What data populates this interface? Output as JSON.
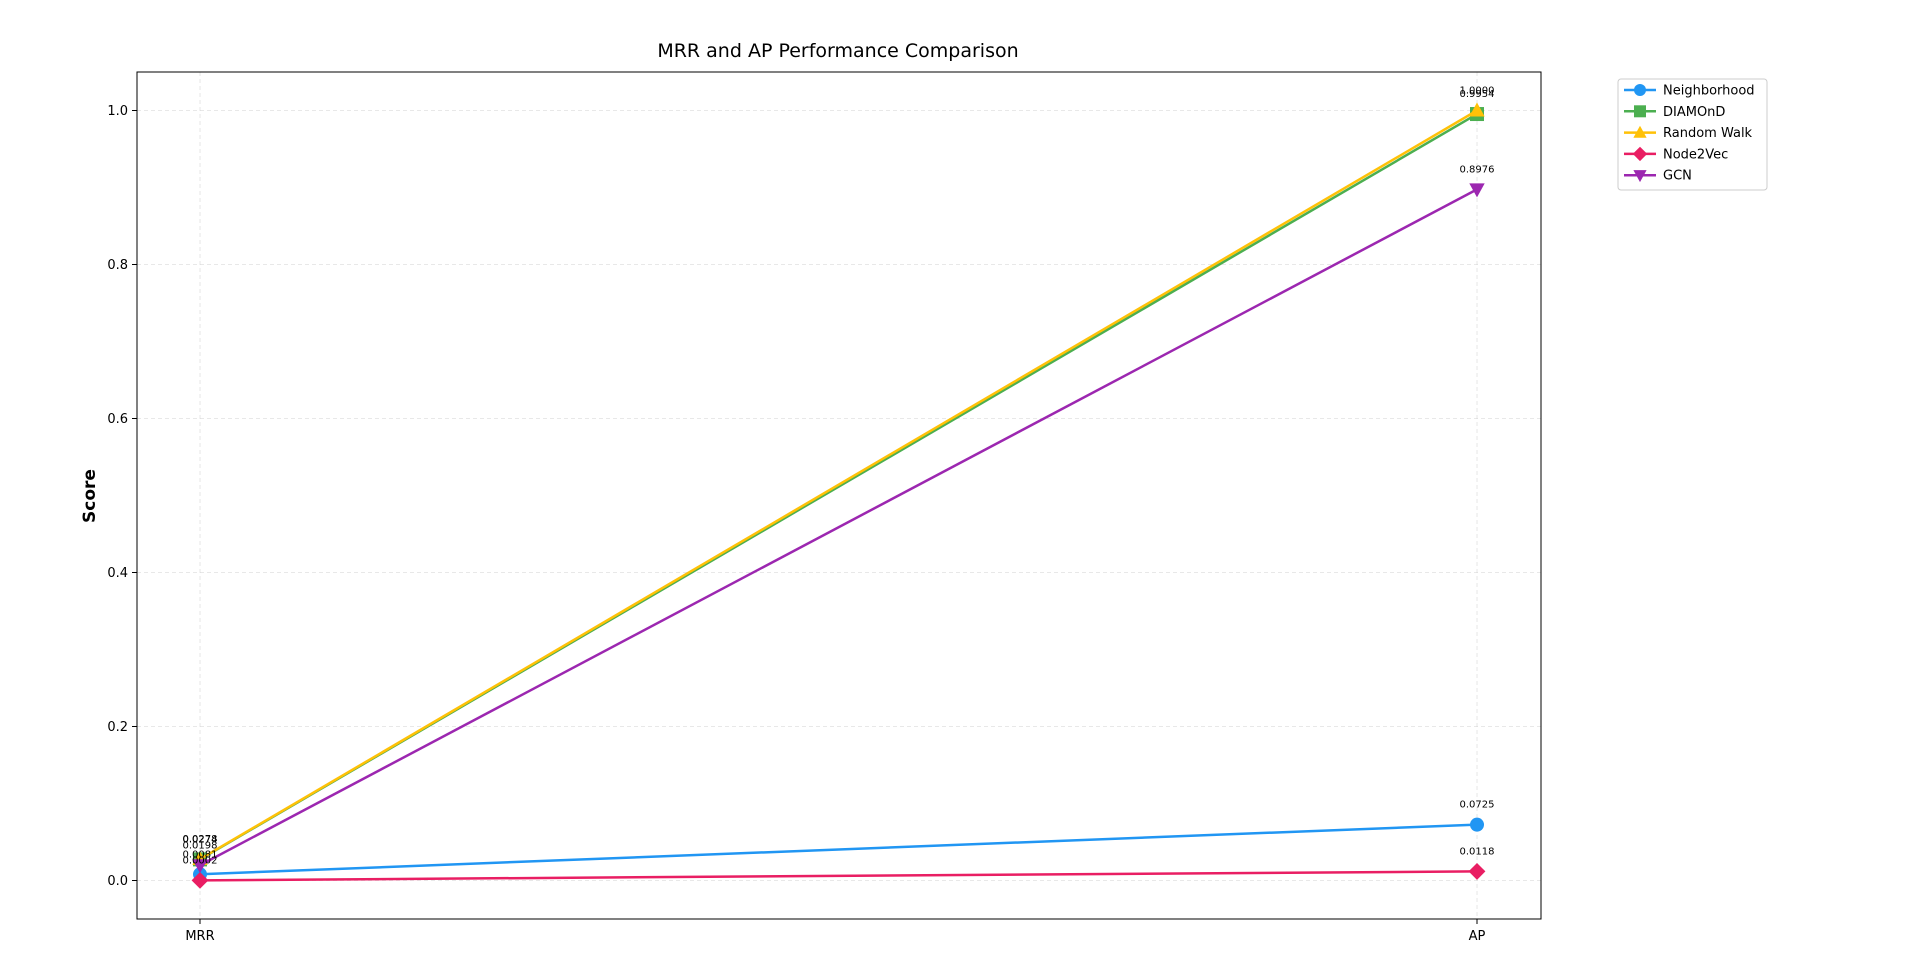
{
  "chart_data": {
    "type": "line",
    "title": "MRR and AP Performance Comparison",
    "xlabel": "",
    "ylabel": "Score",
    "categories": [
      "MRR",
      "AP"
    ],
    "ylim": [
      -0.05,
      1.05
    ],
    "yticks": [
      0.0,
      0.2,
      0.4,
      0.6,
      0.8,
      1.0
    ],
    "ytick_labels": [
      "0.0",
      "0.2",
      "0.4",
      "0.6",
      "0.8",
      "1.0"
    ],
    "grid": true,
    "legend_position": "outside top-right",
    "series": [
      {
        "name": "Neighborhood",
        "color": "#2196F3",
        "marker": "circle",
        "values": [
          0.0081,
          0.0725
        ],
        "labels": [
          "0.0081",
          "0.0725"
        ]
      },
      {
        "name": "DIAMOnD",
        "color": "#4CAF50",
        "marker": "square",
        "values": [
          0.0274,
          0.9954
        ],
        "labels": [
          "0.0274",
          "0.9954"
        ]
      },
      {
        "name": "Random Walk",
        "color": "#FFC107",
        "marker": "triangle-up",
        "values": [
          0.0278,
          1.0
        ],
        "labels": [
          "0.0278",
          "1.0000"
        ]
      },
      {
        "name": "Node2Vec",
        "color": "#E91E63",
        "marker": "diamond",
        "values": [
          0.0002,
          0.0118
        ],
        "labels": [
          "0.0002",
          "0.0118"
        ]
      },
      {
        "name": "GCN",
        "color": "#9C27B0",
        "marker": "triangle-down",
        "values": [
          0.0198,
          0.8976
        ],
        "labels": [
          "0.0198",
          "0.8976"
        ]
      }
    ]
  }
}
